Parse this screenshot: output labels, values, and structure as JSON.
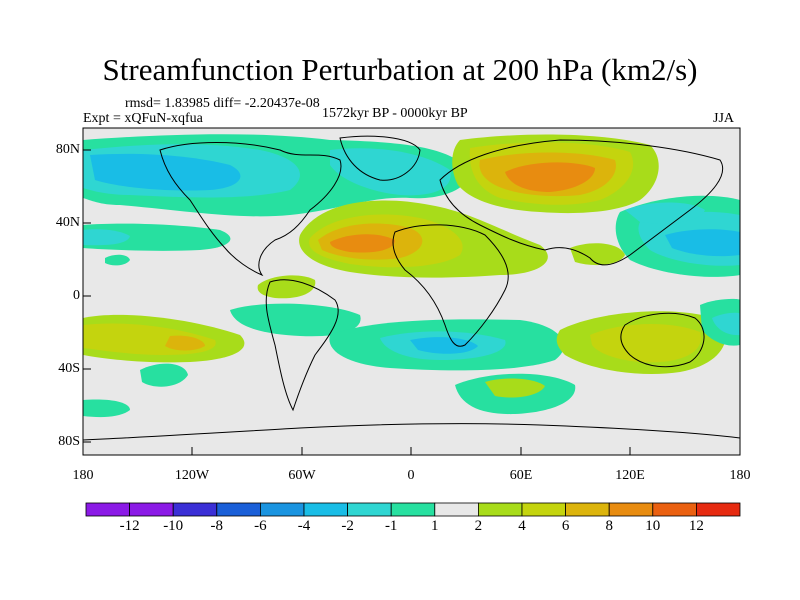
{
  "title": "Streamfunction Perturbation at 200 hPa (km2/s)",
  "stats": "rmsd= 1.83985 diff= -2.20437e-08",
  "experiment": "Expt = xQFuN-xqfua",
  "period": "1572kyr BP - 0000kyr BP",
  "season": "JJA",
  "lat_ticks": [
    "80N",
    "40N",
    "0",
    "40S",
    "80S"
  ],
  "lon_ticks": [
    "180",
    "120W",
    "60W",
    "0",
    "60E",
    "120E",
    "180"
  ],
  "colorbar": {
    "labels": [
      "-12",
      "-10",
      "-8",
      "-6",
      "-4",
      "-2",
      "-1",
      "1",
      "2",
      "4",
      "6",
      "8",
      "10",
      "12"
    ],
    "colors": [
      "#8b1ae6",
      "#3b2fd6",
      "#1a5fd8",
      "#1a94e0",
      "#19bde6",
      "#2fd6d2",
      "#27e0a0",
      "#e8e8e8",
      "#a8dc1a",
      "#c4d40e",
      "#dcb40c",
      "#e88c10",
      "#ea6010",
      "#e62a10"
    ]
  }
}
